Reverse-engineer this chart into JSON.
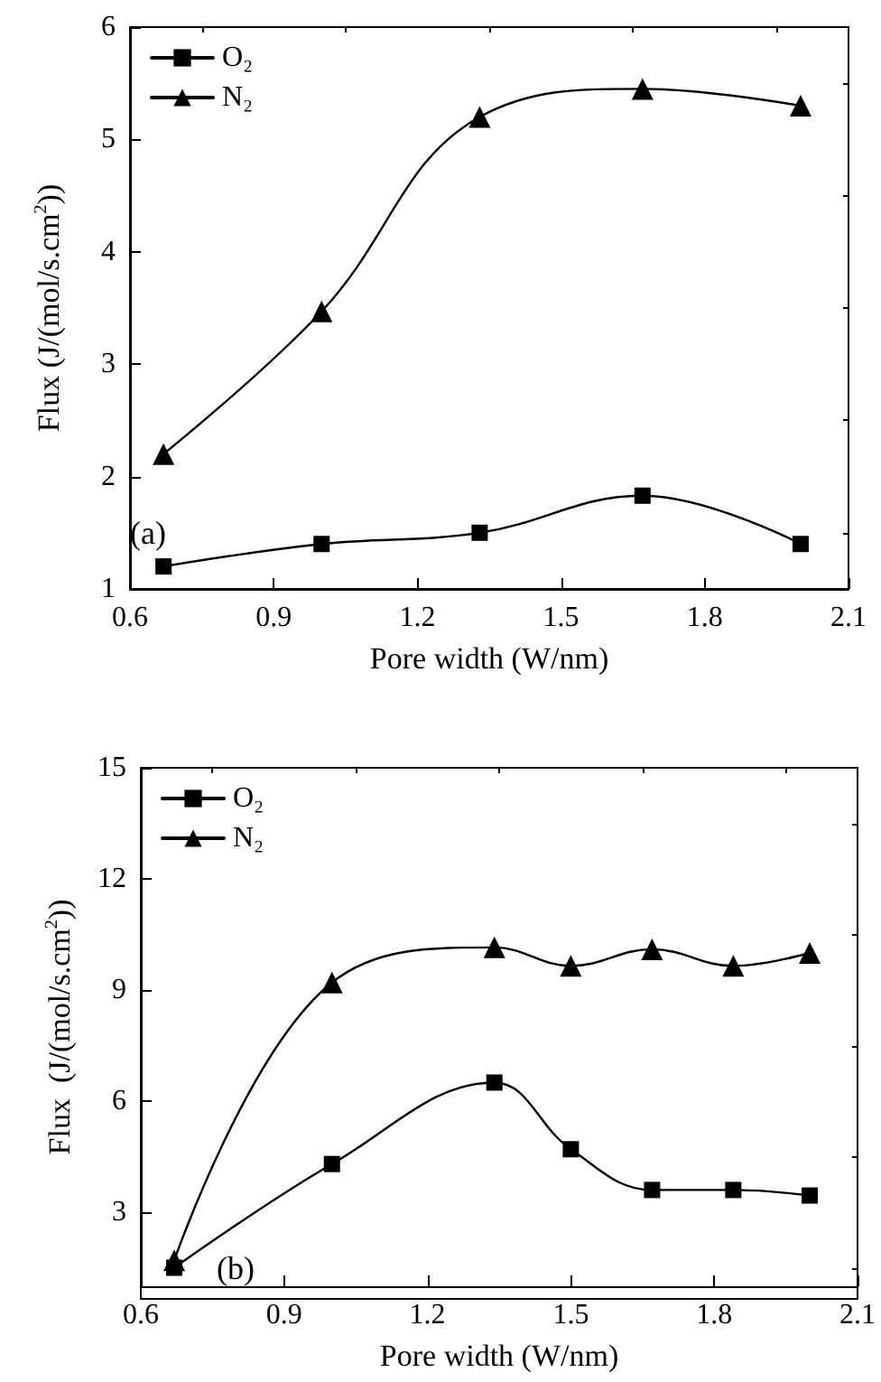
{
  "chart_data": [
    {
      "type": "line",
      "xlabel": "Pore width (W/nm)",
      "ylabel": "Flux (J/(mol/s.cm$^{2}$))",
      "annotations": [
        "(a)"
      ],
      "x": [
        0.67,
        1.0,
        1.33,
        1.67,
        2.0
      ],
      "series": [
        {
          "name": "O₂",
          "color": "#000000",
          "marker": "square",
          "values": [
            1.2,
            1.4,
            1.5,
            1.83,
            1.4
          ]
        },
        {
          "name": "N₂",
          "color": "#000000",
          "marker": "triangle",
          "values": [
            2.2,
            3.47,
            5.2,
            5.45,
            5.3
          ]
        }
      ],
      "xlim": [
        0.6,
        2.1
      ],
      "xticks": [
        0.6,
        0.9,
        1.2,
        1.5,
        1.8,
        2.1
      ],
      "ylim": [
        1,
        6
      ],
      "yticks": [
        1,
        2,
        3,
        4,
        5,
        6
      ],
      "legend": "top left",
      "grid": false,
      "line_style": "solid"
    },
    {
      "type": "line",
      "xlabel": "Pore width (W/nm)",
      "ylabel": "Flux  (J/(mol/s.cm$^{2}$))",
      "annotations": [
        "(b)"
      ],
      "x": [
        0.67,
        1.0,
        1.34,
        1.5,
        1.67,
        1.84,
        2.0
      ],
      "series": [
        {
          "name": "O₂",
          "color": "#000000",
          "marker": "square",
          "values": [
            1.5,
            4.3,
            6.5,
            4.7,
            3.6,
            3.6,
            3.45
          ]
        },
        {
          "name": "N₂",
          "color": "#000000",
          "marker": "triangle",
          "values": [
            1.7,
            9.2,
            10.15,
            9.65,
            10.1,
            9.65,
            10.0
          ]
        }
      ],
      "xlim": [
        0.6,
        2.1
      ],
      "xticks": [
        0.6,
        0.9,
        1.2,
        1.5,
        1.8,
        2.1
      ],
      "ylim": [
        1,
        15
      ],
      "yticks": [
        3,
        6,
        9,
        12,
        15
      ],
      "legend": "top left",
      "grid": false,
      "line_style": "solid"
    }
  ]
}
